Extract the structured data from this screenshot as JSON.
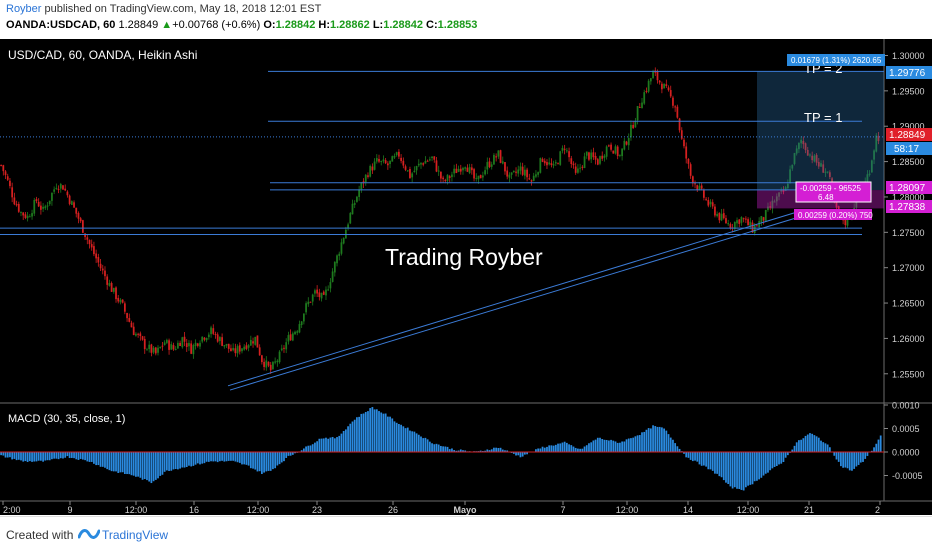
{
  "header": {
    "author": "Royber",
    "published_text": " published on TradingView.com, May 18, 2018 12:01 EST",
    "symbol": "OANDA:USDCAD, 60",
    "last": "1.28849",
    "change": "+0.00768 (+0.6%)",
    "o_label": "O:",
    "o_val": "1.28842",
    "h_label": "H:",
    "h_val": "1.28862",
    "l_label": "L:",
    "l_val": "1.28842",
    "c_label": "C:",
    "c_val": "1.28853"
  },
  "chart": {
    "legend": "USD/CAD, 60, OANDA, Heikin Ashi",
    "watermark": "Trading Royber",
    "tp2_label": "TP = 2",
    "tp1_label": "TP = 1",
    "price_ticks": [
      "1.30000",
      "1.29500",
      "1.29000",
      "1.28500",
      "1.28000",
      "1.27500",
      "1.27000",
      "1.26500",
      "1.26000",
      "1.25500"
    ],
    "price_tags": {
      "top_tag": "0.01679 (1.31%) 2620.65",
      "target": "1.29776",
      "current": "1.28849",
      "countdown": "58:17",
      "entry": "1.28097",
      "stop": "1.27838",
      "risk_tag_line1": "-0.00259 - 96525",
      "risk_tag_line2": "6.48",
      "stop_tag": "0.00259 (0.20%) 750"
    },
    "time_ticks": [
      "2:00",
      "9",
      "12:00",
      "16",
      "12:00",
      "23",
      "26",
      "Mayo",
      "7",
      "12:00",
      "14",
      "12:00",
      "21",
      "2"
    ],
    "colors": {
      "up": "#1e7a1e",
      "down": "#d62020",
      "macd_hist": "#2a8adf",
      "line": "#3b7bd6",
      "tag_blue": "#2a8adf",
      "tag_red": "#e0202a",
      "tag_magenta": "#d41fd4"
    },
    "chart_data": {
      "type": "candlestick",
      "symbol": "USD/CAD",
      "ylim": [
        1.252,
        1.3012
      ],
      "macd_label": "MACD (30, 35, close, 1)",
      "macd_ticks": [
        "0.0010",
        "0.0005",
        "0.0000",
        "-0.0005"
      ],
      "macd_ylim": [
        -0.001,
        0.001
      ],
      "price_keypoints": [
        [
          0,
          1.2845
        ],
        [
          3,
          1.2822
        ],
        [
          6,
          1.2795
        ],
        [
          9,
          1.2778
        ],
        [
          12,
          1.2772
        ],
        [
          16,
          1.2795
        ],
        [
          19,
          1.278
        ],
        [
          22,
          1.2798
        ],
        [
          25,
          1.2818
        ],
        [
          28,
          1.2815
        ],
        [
          32,
          1.279
        ],
        [
          35,
          1.277
        ],
        [
          40,
          1.2733
        ],
        [
          45,
          1.27
        ],
        [
          50,
          1.267
        ],
        [
          55,
          1.2645
        ],
        [
          60,
          1.261
        ],
        [
          65,
          1.259
        ],
        [
          70,
          1.2578
        ],
        [
          74,
          1.2595
        ],
        [
          78,
          1.2585
        ],
        [
          82,
          1.26
        ],
        [
          86,
          1.2585
        ],
        [
          90,
          1.26
        ],
        [
          95,
          1.261
        ],
        [
          100,
          1.2595
        ],
        [
          105,
          1.258
        ],
        [
          110,
          1.259
        ],
        [
          115,
          1.26
        ],
        [
          118,
          1.257
        ],
        [
          122,
          1.2555
        ],
        [
          126,
          1.2575
        ],
        [
          130,
          1.26
        ],
        [
          134,
          1.2615
        ],
        [
          138,
          1.2645
        ],
        [
          142,
          1.2665
        ],
        [
          146,
          1.2655
        ],
        [
          150,
          1.2695
        ],
        [
          154,
          1.2735
        ],
        [
          158,
          1.2775
        ],
        [
          162,
          1.281
        ],
        [
          166,
          1.2835
        ],
        [
          170,
          1.285
        ],
        [
          175,
          1.2845
        ],
        [
          180,
          1.286
        ],
        [
          185,
          1.283
        ],
        [
          190,
          1.2848
        ],
        [
          195,
          1.2855
        ],
        [
          200,
          1.282
        ],
        [
          205,
          1.2835
        ],
        [
          210,
          1.2848
        ],
        [
          215,
          1.282
        ],
        [
          220,
          1.2845
        ],
        [
          225,
          1.286
        ],
        [
          230,
          1.2825
        ],
        [
          235,
          1.284
        ],
        [
          240,
          1.2822
        ],
        [
          245,
          1.2855
        ],
        [
          250,
          1.284
        ],
        [
          255,
          1.2872
        ],
        [
          260,
          1.283
        ],
        [
          265,
          1.286
        ],
        [
          270,
          1.285
        ],
        [
          275,
          1.2875
        ],
        [
          280,
          1.2858
        ],
        [
          285,
          1.2895
        ],
        [
          290,
          1.294
        ],
        [
          295,
          1.2975
        ],
        [
          300,
          1.2955
        ],
        [
          305,
          1.293
        ],
        [
          308,
          1.288
        ],
        [
          312,
          1.283
        ],
        [
          316,
          1.281
        ],
        [
          320,
          1.279
        ],
        [
          325,
          1.2772
        ],
        [
          330,
          1.276
        ],
        [
          335,
          1.277
        ],
        [
          340,
          1.2755
        ],
        [
          345,
          1.277
        ],
        [
          350,
          1.2795
        ],
        [
          355,
          1.281
        ],
        [
          358,
          1.285
        ],
        [
          362,
          1.288
        ],
        [
          366,
          1.286
        ],
        [
          370,
          1.2845
        ],
        [
          374,
          1.2835
        ],
        [
          378,
          1.278
        ],
        [
          382,
          1.2765
        ],
        [
          386,
          1.279
        ],
        [
          390,
          1.281
        ],
        [
          393,
          1.284
        ],
        [
          396,
          1.2885
        ]
      ],
      "macd_keypoints": [
        [
          0,
          -8e-05
        ],
        [
          10,
          -0.0002
        ],
        [
          20,
          -0.0002
        ],
        [
          30,
          -0.0001
        ],
        [
          40,
          -0.0002
        ],
        [
          50,
          -0.0004
        ],
        [
          60,
          -0.0005
        ],
        [
          68,
          -0.00065
        ],
        [
          75,
          -0.0004
        ],
        [
          85,
          -0.0003
        ],
        [
          95,
          -0.0002
        ],
        [
          105,
          -0.0002
        ],
        [
          112,
          -0.0003
        ],
        [
          118,
          -0.00045
        ],
        [
          122,
          -0.0004
        ],
        [
          130,
          -0.0001
        ],
        [
          138,
          0.0001
        ],
        [
          145,
          0.0003
        ],
        [
          152,
          0.0003
        ],
        [
          160,
          0.0007
        ],
        [
          168,
          0.00095
        ],
        [
          174,
          0.0008
        ],
        [
          180,
          0.0006
        ],
        [
          188,
          0.0004
        ],
        [
          195,
          0.0002
        ],
        [
          205,
          5e-05
        ],
        [
          215,
          0.0
        ],
        [
          225,
          0.0001
        ],
        [
          235,
          -0.0001
        ],
        [
          245,
          0.0001
        ],
        [
          255,
          0.0002
        ],
        [
          262,
          5e-05
        ],
        [
          270,
          0.0003
        ],
        [
          280,
          0.0002
        ],
        [
          290,
          0.0004
        ],
        [
          295,
          0.00055
        ],
        [
          300,
          0.0005
        ],
        [
          305,
          0.0002
        ],
        [
          310,
          -0.0001
        ],
        [
          318,
          -0.0003
        ],
        [
          325,
          -0.0005
        ],
        [
          330,
          -0.00075
        ],
        [
          336,
          -0.0008
        ],
        [
          342,
          -0.0006
        ],
        [
          348,
          -0.0004
        ],
        [
          354,
          -0.0002
        ],
        [
          360,
          0.0002
        ],
        [
          366,
          0.0004
        ],
        [
          370,
          0.0003
        ],
        [
          375,
          0.0001
        ],
        [
          380,
          -0.0003
        ],
        [
          385,
          -0.0004
        ],
        [
          390,
          -0.0002
        ],
        [
          395,
          0.0001
        ],
        [
          398,
          0.00035
        ]
      ]
    }
  },
  "footer": {
    "created_with": "Created with",
    "brand": "TradingView"
  }
}
